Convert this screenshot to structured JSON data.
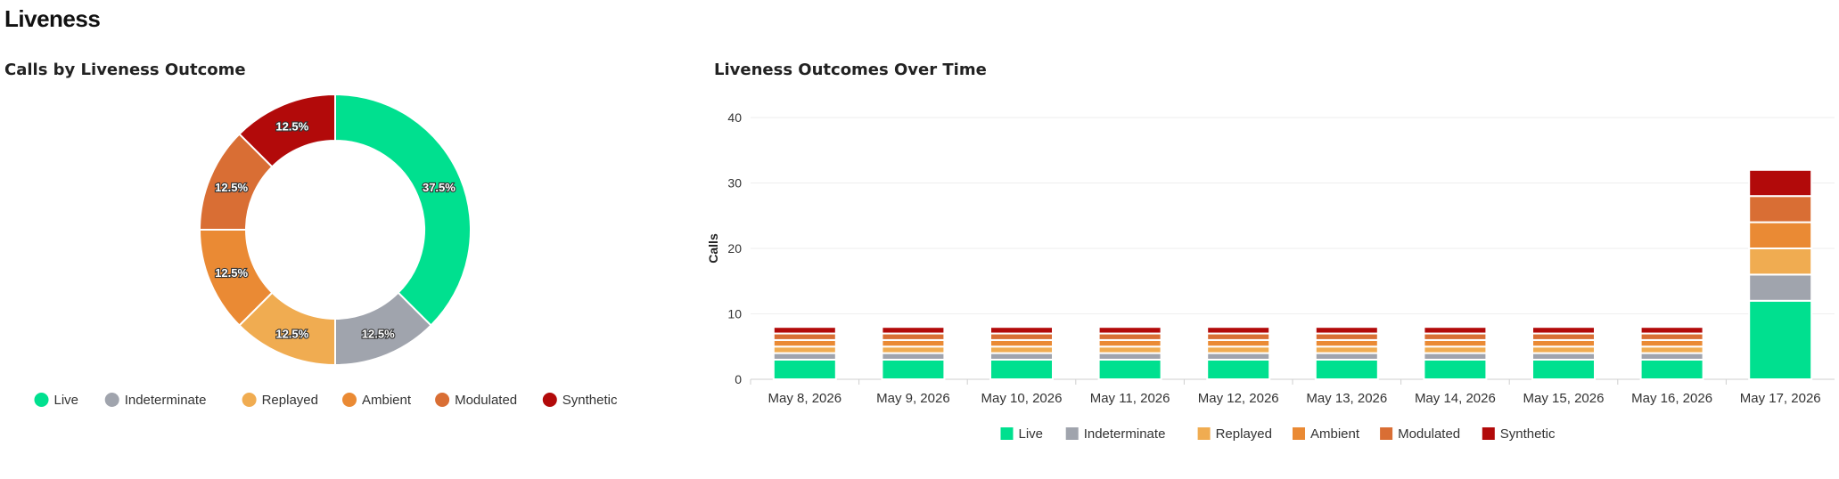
{
  "page": {
    "title": "Liveness"
  },
  "colors": {
    "Live": "#00e08f",
    "Indeterminate": "#a0a4ad",
    "Replayed": "#f0ac51",
    "Ambient": "#ea8a34",
    "Modulated": "#d96e34",
    "Synthetic": "#b20a0a"
  },
  "chart_data": [
    {
      "type": "pie",
      "variant": "donut",
      "title": "Calls by Liveness Outcome",
      "categories": [
        "Live",
        "Indeterminate",
        "Replayed",
        "Ambient",
        "Modulated",
        "Synthetic"
      ],
      "values": [
        37.5,
        12.5,
        12.5,
        12.5,
        12.5,
        12.5
      ],
      "labels": [
        "37.5%",
        "12.5%",
        "12.5%",
        "12.5%",
        "12.5%",
        "12.5%"
      ],
      "legend": "bottom"
    },
    {
      "type": "bar",
      "stacked": true,
      "title": "Liveness Outcomes Over Time",
      "xlabel": "",
      "ylabel": "Calls",
      "ylim": [
        0,
        40
      ],
      "yticks": [
        0,
        10,
        20,
        30,
        40
      ],
      "categories": [
        "May 8, 2026",
        "May 9, 2026",
        "May 10, 2026",
        "May 11, 2026",
        "May 12, 2026",
        "May 13, 2026",
        "May 14, 2026",
        "May 15, 2026",
        "May 16, 2026",
        "May 17, 2026"
      ],
      "series": [
        {
          "name": "Live",
          "values": [
            3,
            3,
            3,
            3,
            3,
            3,
            3,
            3,
            3,
            12
          ]
        },
        {
          "name": "Indeterminate",
          "values": [
            1,
            1,
            1,
            1,
            1,
            1,
            1,
            1,
            1,
            4
          ]
        },
        {
          "name": "Replayed",
          "values": [
            1,
            1,
            1,
            1,
            1,
            1,
            1,
            1,
            1,
            4
          ]
        },
        {
          "name": "Ambient",
          "values": [
            1,
            1,
            1,
            1,
            1,
            1,
            1,
            1,
            1,
            4
          ]
        },
        {
          "name": "Modulated",
          "values": [
            1,
            1,
            1,
            1,
            1,
            1,
            1,
            1,
            1,
            4
          ]
        },
        {
          "name": "Synthetic",
          "values": [
            1,
            1,
            1,
            1,
            1,
            1,
            1,
            1,
            1,
            4
          ]
        }
      ],
      "grid": true,
      "legend": "bottom"
    }
  ]
}
